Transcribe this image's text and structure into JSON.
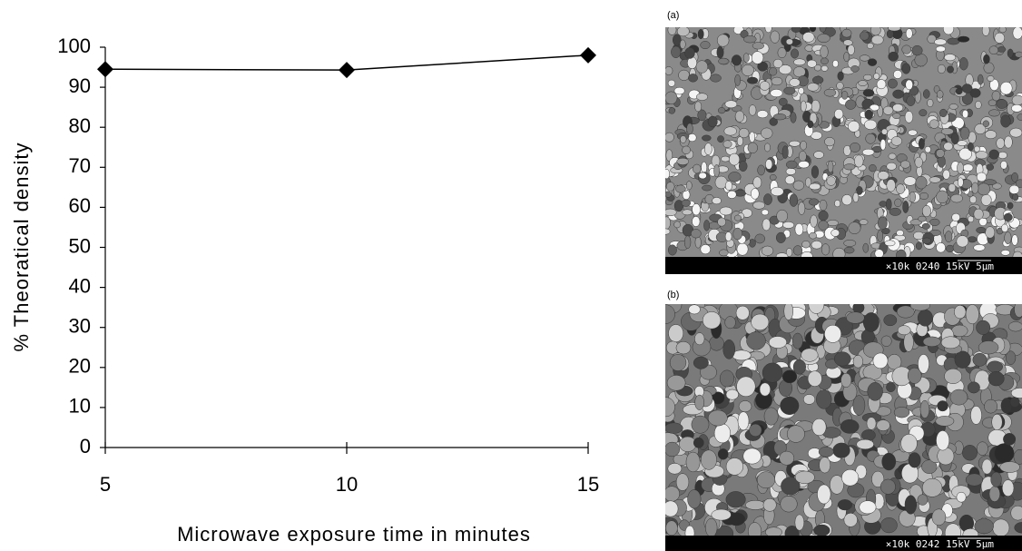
{
  "chart_data": {
    "type": "line",
    "x_label": "Microwave exposure time in minutes",
    "y_label": "% Theoratical density",
    "x": [
      5,
      10,
      15
    ],
    "values": [
      94.5,
      94.3,
      98
    ],
    "color": "#000000",
    "marker": "diamond",
    "xlim": [
      5,
      15
    ],
    "xticks": [
      5,
      10,
      15
    ],
    "ylim": [
      0,
      100
    ],
    "yticks": [
      0,
      10,
      20,
      30,
      40,
      50,
      60,
      70,
      80,
      90,
      100
    ],
    "grid": false
  },
  "panels": [
    {
      "label": "(a)",
      "scale_text": "×10k 0240  15kV   5µm"
    },
    {
      "label": "(b)",
      "scale_text": "×10k 0242  15kV   5µm"
    }
  ]
}
